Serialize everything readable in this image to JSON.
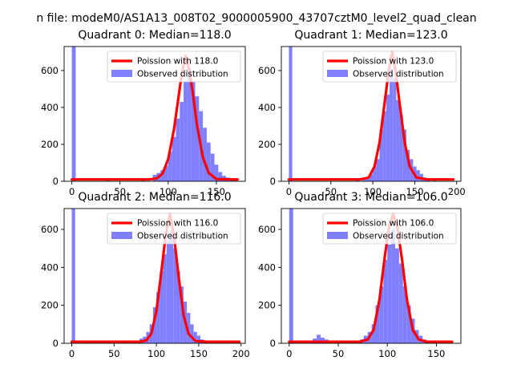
{
  "figure": {
    "suptitle": "n file: modeM0/AS1A13_008T02_9000005900_43707cztM0_level2_quad_clean"
  },
  "chart_data": [
    {
      "type": "bar",
      "title": "Quadrant 0: Median=118.0",
      "median": 118.0,
      "xlim": [
        -8,
        180
      ],
      "ylim": [
        0,
        730
      ],
      "xticks": [
        0,
        50,
        100,
        150
      ],
      "yticks": [
        0,
        200,
        400,
        600
      ],
      "legend": [
        "Poission with 118.0",
        "Observed distribution"
      ],
      "legend_position": "upper right",
      "bar_color": "#8080ff",
      "curve_color": "#ff0000",
      "bar_width": 4,
      "hist": [
        {
          "x": 0,
          "y": 730
        },
        {
          "x": 36,
          "y": 14
        },
        {
          "x": 72,
          "y": 5
        },
        {
          "x": 84,
          "y": 35
        },
        {
          "x": 88,
          "y": 45
        },
        {
          "x": 92,
          "y": 60
        },
        {
          "x": 96,
          "y": 85
        },
        {
          "x": 100,
          "y": 160
        },
        {
          "x": 104,
          "y": 240
        },
        {
          "x": 108,
          "y": 340
        },
        {
          "x": 112,
          "y": 430
        },
        {
          "x": 116,
          "y": 540
        },
        {
          "x": 120,
          "y": 610
        },
        {
          "x": 124,
          "y": 540
        },
        {
          "x": 128,
          "y": 460
        },
        {
          "x": 132,
          "y": 380
        },
        {
          "x": 136,
          "y": 290
        },
        {
          "x": 140,
          "y": 210
        },
        {
          "x": 144,
          "y": 150
        },
        {
          "x": 148,
          "y": 90
        },
        {
          "x": 152,
          "y": 50
        },
        {
          "x": 156,
          "y": 30
        },
        {
          "x": 160,
          "y": 20
        },
        {
          "x": 164,
          "y": 10
        },
        {
          "x": 168,
          "y": 5
        }
      ],
      "poisson": [
        {
          "x": 0,
          "y": 10
        },
        {
          "x": 80,
          "y": 10
        },
        {
          "x": 88,
          "y": 15
        },
        {
          "x": 94,
          "y": 40
        },
        {
          "x": 100,
          "y": 120
        },
        {
          "x": 106,
          "y": 280
        },
        {
          "x": 110,
          "y": 430
        },
        {
          "x": 114,
          "y": 580
        },
        {
          "x": 118,
          "y": 680
        },
        {
          "x": 122,
          "y": 600
        },
        {
          "x": 126,
          "y": 460
        },
        {
          "x": 130,
          "y": 300
        },
        {
          "x": 136,
          "y": 130
        },
        {
          "x": 142,
          "y": 45
        },
        {
          "x": 150,
          "y": 12
        },
        {
          "x": 165,
          "y": 10
        },
        {
          "x": 172,
          "y": 10
        }
      ]
    },
    {
      "type": "bar",
      "title": "Quadrant 1: Median=123.0",
      "median": 123.0,
      "xlim": [
        -9,
        205
      ],
      "ylim": [
        0,
        730
      ],
      "xticks": [
        0,
        50,
        100,
        150,
        200
      ],
      "yticks": [
        0,
        200,
        400,
        600
      ],
      "legend": [
        "Poission with 123.0",
        "Observed distribution"
      ],
      "legend_position": "upper right",
      "bar_color": "#8080ff",
      "curve_color": "#ff0000",
      "bar_width": 4,
      "hist": [
        {
          "x": 0,
          "y": 730
        },
        {
          "x": 80,
          "y": 5
        },
        {
          "x": 88,
          "y": 10
        },
        {
          "x": 92,
          "y": 20
        },
        {
          "x": 96,
          "y": 40
        },
        {
          "x": 100,
          "y": 80
        },
        {
          "x": 104,
          "y": 120
        },
        {
          "x": 108,
          "y": 280
        },
        {
          "x": 112,
          "y": 380
        },
        {
          "x": 116,
          "y": 470
        },
        {
          "x": 120,
          "y": 610
        },
        {
          "x": 124,
          "y": 560
        },
        {
          "x": 128,
          "y": 440
        },
        {
          "x": 132,
          "y": 360
        },
        {
          "x": 136,
          "y": 280
        },
        {
          "x": 140,
          "y": 170
        },
        {
          "x": 144,
          "y": 120
        },
        {
          "x": 148,
          "y": 80
        },
        {
          "x": 152,
          "y": 60
        },
        {
          "x": 156,
          "y": 40
        },
        {
          "x": 160,
          "y": 20
        },
        {
          "x": 164,
          "y": 10
        },
        {
          "x": 172,
          "y": 5
        }
      ],
      "poisson": [
        {
          "x": 0,
          "y": 10
        },
        {
          "x": 85,
          "y": 10
        },
        {
          "x": 95,
          "y": 20
        },
        {
          "x": 102,
          "y": 80
        },
        {
          "x": 108,
          "y": 210
        },
        {
          "x": 114,
          "y": 420
        },
        {
          "x": 119,
          "y": 600
        },
        {
          "x": 123,
          "y": 700
        },
        {
          "x": 127,
          "y": 600
        },
        {
          "x": 132,
          "y": 420
        },
        {
          "x": 138,
          "y": 210
        },
        {
          "x": 144,
          "y": 80
        },
        {
          "x": 152,
          "y": 20
        },
        {
          "x": 165,
          "y": 10
        },
        {
          "x": 196,
          "y": 10
        }
      ]
    },
    {
      "type": "bar",
      "title": "Quadrant 2: Median=116.0",
      "median": 116.0,
      "xlim": [
        -9,
        205
      ],
      "ylim": [
        0,
        710
      ],
      "xticks": [
        0,
        50,
        100,
        150,
        200
      ],
      "yticks": [
        0,
        200,
        400,
        600
      ],
      "legend": [
        "Poission with 116.0",
        "Observed distribution"
      ],
      "legend_position": "upper right",
      "bar_color": "#8080ff",
      "curve_color": "#ff0000",
      "bar_width": 4,
      "hist": [
        {
          "x": 0,
          "y": 710
        },
        {
          "x": 20,
          "y": 8
        },
        {
          "x": 28,
          "y": 12
        },
        {
          "x": 36,
          "y": 8
        },
        {
          "x": 48,
          "y": 6
        },
        {
          "x": 60,
          "y": 8
        },
        {
          "x": 72,
          "y": 15
        },
        {
          "x": 80,
          "y": 25
        },
        {
          "x": 84,
          "y": 35
        },
        {
          "x": 88,
          "y": 60
        },
        {
          "x": 92,
          "y": 100
        },
        {
          "x": 96,
          "y": 190
        },
        {
          "x": 100,
          "y": 270
        },
        {
          "x": 104,
          "y": 380
        },
        {
          "x": 108,
          "y": 470
        },
        {
          "x": 112,
          "y": 540
        },
        {
          "x": 116,
          "y": 590
        },
        {
          "x": 120,
          "y": 500
        },
        {
          "x": 124,
          "y": 380
        },
        {
          "x": 128,
          "y": 300
        },
        {
          "x": 132,
          "y": 220
        },
        {
          "x": 136,
          "y": 160
        },
        {
          "x": 140,
          "y": 100
        },
        {
          "x": 144,
          "y": 60
        },
        {
          "x": 148,
          "y": 40
        },
        {
          "x": 152,
          "y": 20
        },
        {
          "x": 156,
          "y": 10
        }
      ],
      "poisson": [
        {
          "x": 0,
          "y": 8
        },
        {
          "x": 80,
          "y": 8
        },
        {
          "x": 88,
          "y": 15
        },
        {
          "x": 94,
          "y": 50
        },
        {
          "x": 100,
          "y": 170
        },
        {
          "x": 106,
          "y": 380
        },
        {
          "x": 111,
          "y": 570
        },
        {
          "x": 116,
          "y": 680
        },
        {
          "x": 121,
          "y": 560
        },
        {
          "x": 126,
          "y": 360
        },
        {
          "x": 132,
          "y": 150
        },
        {
          "x": 138,
          "y": 50
        },
        {
          "x": 146,
          "y": 12
        },
        {
          "x": 160,
          "y": 8
        },
        {
          "x": 198,
          "y": 8
        }
      ]
    },
    {
      "type": "bar",
      "title": "Quadrant 3: Median=106.0",
      "median": 106.0,
      "xlim": [
        -8,
        175
      ],
      "ylim": [
        0,
        710
      ],
      "xticks": [
        0,
        50,
        100,
        150
      ],
      "yticks": [
        0,
        200,
        400,
        600
      ],
      "legend": [
        "Poission with 106.0",
        "Observed distribution"
      ],
      "legend_position": "upper right",
      "bar_color": "#8080ff",
      "curve_color": "#ff0000",
      "bar_width": 4,
      "hist": [
        {
          "x": 0,
          "y": 710
        },
        {
          "x": 20,
          "y": 15
        },
        {
          "x": 24,
          "y": 25
        },
        {
          "x": 28,
          "y": 45
        },
        {
          "x": 32,
          "y": 30
        },
        {
          "x": 36,
          "y": 20
        },
        {
          "x": 44,
          "y": 10
        },
        {
          "x": 52,
          "y": 8
        },
        {
          "x": 60,
          "y": 10
        },
        {
          "x": 68,
          "y": 12
        },
        {
          "x": 72,
          "y": 20
        },
        {
          "x": 76,
          "y": 40
        },
        {
          "x": 80,
          "y": 60
        },
        {
          "x": 84,
          "y": 100
        },
        {
          "x": 88,
          "y": 200
        },
        {
          "x": 92,
          "y": 300
        },
        {
          "x": 96,
          "y": 440
        },
        {
          "x": 100,
          "y": 520
        },
        {
          "x": 104,
          "y": 600
        },
        {
          "x": 108,
          "y": 500
        },
        {
          "x": 112,
          "y": 420
        },
        {
          "x": 116,
          "y": 300
        },
        {
          "x": 120,
          "y": 200
        },
        {
          "x": 124,
          "y": 130
        },
        {
          "x": 128,
          "y": 70
        },
        {
          "x": 132,
          "y": 40
        },
        {
          "x": 136,
          "y": 20
        },
        {
          "x": 140,
          "y": 10
        },
        {
          "x": 148,
          "y": 5
        }
      ],
      "poisson": [
        {
          "x": 0,
          "y": 8
        },
        {
          "x": 72,
          "y": 8
        },
        {
          "x": 80,
          "y": 20
        },
        {
          "x": 86,
          "y": 70
        },
        {
          "x": 92,
          "y": 230
        },
        {
          "x": 97,
          "y": 440
        },
        {
          "x": 102,
          "y": 620
        },
        {
          "x": 106,
          "y": 680
        },
        {
          "x": 110,
          "y": 620
        },
        {
          "x": 115,
          "y": 440
        },
        {
          "x": 120,
          "y": 230
        },
        {
          "x": 126,
          "y": 70
        },
        {
          "x": 132,
          "y": 20
        },
        {
          "x": 140,
          "y": 8
        },
        {
          "x": 166,
          "y": 8
        }
      ]
    }
  ]
}
